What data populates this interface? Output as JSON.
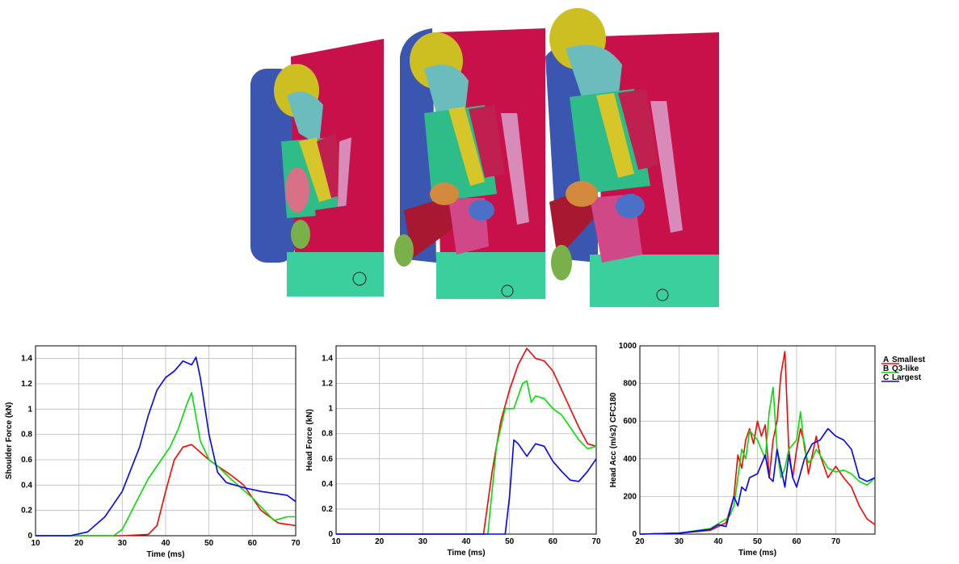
{
  "colors": {
    "smallest": "#ff0000",
    "q3like": "#00e000",
    "largest": "#0000ff"
  },
  "legend": {
    "items": [
      {
        "marker": "A",
        "label": "Smallest",
        "color": "#ff0000"
      },
      {
        "marker": "B",
        "label": "Q3-like",
        "color": "#00e000"
      },
      {
        "marker": "C",
        "label": "Largest",
        "color": "#0000ff"
      }
    ]
  },
  "chart_data": [
    {
      "id": "shoulder",
      "type": "line",
      "xlabel": "Time (ms)",
      "ylabel": "Shoulder Force (kN)",
      "xlim": [
        10,
        70
      ],
      "ylim": [
        0,
        1.5
      ],
      "xticks": [
        10,
        20,
        30,
        40,
        50,
        60,
        70
      ],
      "yticks": [
        0,
        0.2,
        0.4,
        0.6,
        0.8,
        1,
        1.2,
        1.4
      ],
      "ytick_labels": [
        "0",
        "0.2",
        "0.4",
        "0.6",
        "0.8",
        "1",
        "1.2",
        "1.4"
      ],
      "grid": true,
      "series": [
        {
          "color": "#ff0000",
          "x": [
            10,
            30,
            36,
            38,
            40,
            42,
            44,
            46,
            48,
            50,
            52,
            55,
            58,
            62,
            66,
            70
          ],
          "y": [
            0,
            0,
            0.01,
            0.08,
            0.35,
            0.6,
            0.7,
            0.72,
            0.66,
            0.6,
            0.55,
            0.48,
            0.4,
            0.2,
            0.1,
            0.08
          ]
        },
        {
          "color": "#00e000",
          "x": [
            10,
            28,
            30,
            33,
            36,
            39,
            41,
            43,
            45,
            46,
            48,
            50,
            52,
            55,
            60,
            65,
            68,
            70
          ],
          "y": [
            0,
            0,
            0.05,
            0.25,
            0.45,
            0.6,
            0.7,
            0.85,
            1.05,
            1.13,
            0.75,
            0.6,
            0.55,
            0.45,
            0.3,
            0.12,
            0.15,
            0.15
          ]
        },
        {
          "color": "#0000ff",
          "x": [
            10,
            18,
            22,
            26,
            30,
            34,
            36,
            38,
            40,
            42,
            44,
            46,
            47,
            48,
            50,
            52,
            54,
            58,
            62,
            66,
            68,
            70
          ],
          "y": [
            0,
            0,
            0.03,
            0.15,
            0.35,
            0.7,
            0.95,
            1.15,
            1.25,
            1.3,
            1.38,
            1.35,
            1.41,
            1.25,
            0.8,
            0.5,
            0.42,
            0.38,
            0.35,
            0.33,
            0.32,
            0.27
          ]
        }
      ]
    },
    {
      "id": "head-force",
      "type": "line",
      "xlabel": "Time (ms)",
      "ylabel": "Head Force (kN)",
      "xlim": [
        10,
        70
      ],
      "ylim": [
        0,
        1.5
      ],
      "xticks": [
        10,
        20,
        30,
        40,
        50,
        60,
        70
      ],
      "yticks": [
        0,
        0.2,
        0.4,
        0.6,
        0.8,
        1,
        1.2,
        1.4
      ],
      "ytick_labels": [
        "0",
        "0.2",
        "0.4",
        "0.6",
        "0.8",
        "1",
        "1.2",
        "1.4"
      ],
      "grid": true,
      "series": [
        {
          "color": "#ff0000",
          "x": [
            10,
            44,
            46,
            48,
            50,
            52,
            54,
            56,
            58,
            60,
            62,
            64,
            66,
            68,
            70
          ],
          "y": [
            0,
            0,
            0.5,
            0.9,
            1.15,
            1.35,
            1.48,
            1.4,
            1.38,
            1.3,
            1.15,
            1.0,
            0.85,
            0.72,
            0.7
          ]
        },
        {
          "color": "#00e000",
          "x": [
            10,
            45,
            47,
            49,
            51,
            53,
            54,
            55,
            56,
            58,
            60,
            62,
            64,
            66,
            68,
            70
          ],
          "y": [
            0,
            0,
            0.7,
            1.0,
            1.0,
            1.2,
            1.22,
            1.05,
            1.1,
            1.08,
            1.0,
            0.95,
            0.85,
            0.75,
            0.68,
            0.7
          ]
        },
        {
          "color": "#0000ff",
          "x": [
            10,
            49,
            50,
            51,
            52,
            54,
            56,
            58,
            60,
            62,
            64,
            66,
            68,
            70
          ],
          "y": [
            0,
            0,
            0.3,
            0.75,
            0.72,
            0.62,
            0.72,
            0.7,
            0.58,
            0.5,
            0.43,
            0.42,
            0.5,
            0.6
          ]
        }
      ]
    },
    {
      "id": "head-acc",
      "type": "line",
      "xlabel": "Time (ms)",
      "ylabel": "Head Acc (m/s2) CFC180",
      "xlim": [
        20,
        80
      ],
      "ylim": [
        0,
        1000
      ],
      "xticks": [
        20,
        30,
        40,
        50,
        60,
        70
      ],
      "yticks": [
        0,
        200,
        400,
        600,
        800,
        1000
      ],
      "ytick_labels": [
        "0",
        "200",
        "400",
        "600",
        "800",
        "1000"
      ],
      "grid": true,
      "series": [
        {
          "color": "#ff0000",
          "marker": "A",
          "x": [
            20,
            30,
            38,
            42,
            44,
            45,
            46,
            47,
            48,
            49,
            50,
            51,
            52,
            53,
            54,
            55,
            56,
            57,
            58,
            59,
            60,
            61,
            62,
            63,
            64,
            65,
            66,
            68,
            70,
            72,
            74,
            76,
            78,
            80
          ],
          "y": [
            0,
            5,
            20,
            60,
            200,
            420,
            350,
            500,
            560,
            480,
            600,
            520,
            580,
            300,
            500,
            600,
            850,
            970,
            450,
            300,
            450,
            560,
            480,
            320,
            420,
            520,
            420,
            300,
            360,
            300,
            250,
            150,
            80,
            50
          ]
        },
        {
          "color": "#00e000",
          "marker": "B",
          "x": [
            20,
            30,
            38,
            42,
            43,
            44,
            45,
            46,
            47,
            48,
            50,
            52,
            53,
            54,
            55,
            56,
            57,
            58,
            60,
            61,
            62,
            63,
            64,
            65,
            66,
            68,
            70,
            72,
            74,
            76,
            78,
            80
          ],
          "y": [
            0,
            5,
            30,
            80,
            100,
            150,
            300,
            450,
            400,
            550,
            500,
            400,
            650,
            780,
            450,
            300,
            350,
            450,
            500,
            650,
            450,
            380,
            400,
            450,
            420,
            350,
            330,
            340,
            320,
            280,
            260,
            300
          ]
        },
        {
          "color": "#0000ff",
          "marker": "C",
          "x": [
            20,
            30,
            38,
            40,
            42,
            44,
            45,
            46,
            47,
            48,
            50,
            52,
            53,
            54,
            55,
            56,
            57,
            58,
            59,
            60,
            62,
            64,
            66,
            68,
            70,
            72,
            74,
            76,
            78,
            80
          ],
          "y": [
            0,
            5,
            25,
            50,
            40,
            200,
            150,
            250,
            230,
            300,
            320,
            420,
            300,
            280,
            450,
            350,
            250,
            420,
            300,
            250,
            400,
            480,
            500,
            560,
            520,
            500,
            450,
            300,
            280,
            300
          ]
        }
      ]
    }
  ]
}
